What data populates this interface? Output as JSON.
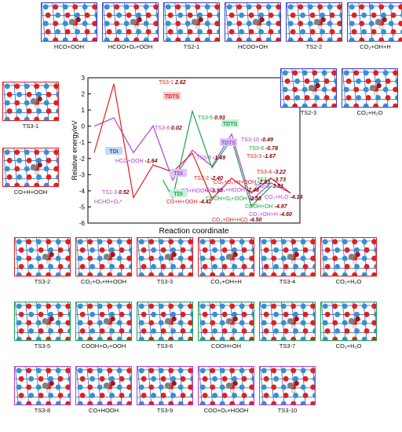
{
  "top_row": [
    {
      "label": "HCO+OOH"
    },
    {
      "label": "HCOO+Oᵥ+OOH"
    },
    {
      "label": "TS2-1"
    },
    {
      "label": "HCOO+OH"
    },
    {
      "label": "TS2-2"
    },
    {
      "label": "CO₂+OH+H"
    }
  ],
  "left_col": [
    {
      "label": "TS3-1"
    },
    {
      "label": "CO+H+OOH"
    }
  ],
  "right_inset": [
    {
      "label": "TS2-3"
    },
    {
      "label": "CO₂+H₂O"
    }
  ],
  "rows": [
    {
      "color": "red",
      "items": [
        "TS3-2",
        "CO₂+Oᵥ+H+OOH",
        "TS3-3",
        "CO₂+OH+H",
        "TS3-4",
        "CO₂+H₂O"
      ]
    },
    {
      "color": "green",
      "items": [
        "TS3-5",
        "COOH+Oᵥ+OOH",
        "TS3-6",
        "COOH+OH",
        "TS3-7",
        "CO₂+H₂O"
      ]
    },
    {
      "color": "purple",
      "items": [
        "TS3-8",
        "CO+HOOH",
        "TS3-9",
        "COO+Oᵥ+HOOH",
        "TS3-10"
      ]
    }
  ],
  "chart_data": {
    "type": "line",
    "xlabel": "Reaction coordinate",
    "ylabel": "Relative energy/eV",
    "ylim": [
      -6,
      3
    ],
    "yticks": [
      -6,
      -5,
      -4,
      -3,
      -2,
      -1,
      0,
      1,
      2,
      3
    ],
    "colors": {
      "purple": "#b040d8",
      "red": "#e02020",
      "green": "#19a24a",
      "blue": "#3050d0"
    },
    "labels": [
      {
        "text": "TS1-3",
        "value": "0.52",
        "color": "purple"
      },
      {
        "text": "HCHO+O₂*",
        "value": "",
        "color": "purple"
      },
      {
        "text": "HCO+OOH",
        "value": "-1.64",
        "color": "purple"
      },
      {
        "text": "TS3-1",
        "value": "2.62",
        "color": "red"
      },
      {
        "text": "TS3-8",
        "value": "0.02",
        "color": "purple"
      },
      {
        "text": "TS3-5",
        "value": "0.93",
        "color": "green"
      },
      {
        "text": "TS3-9",
        "value": "-1.49",
        "color": "purple"
      },
      {
        "text": "TS3-2",
        "value": "-2.40",
        "color": "red"
      },
      {
        "text": "CO+HOOH",
        "value": "-3.34",
        "color": "purple"
      },
      {
        "text": "CO+H+OOH",
        "value": "-4.42",
        "color": "red"
      },
      {
        "text": "CO₂+Oᵥ+H+OOH",
        "value": "-2.83",
        "color": "red"
      },
      {
        "text": "CO₂+Oᵥ+HOOH",
        "value": "-2.48",
        "color": "purple"
      },
      {
        "text": "COOH+Oᵥ+OOH",
        "value": "-2.58",
        "color": "green"
      },
      {
        "text": "CO₂+OH+H(2)",
        "value": "-4.50",
        "color": "red"
      },
      {
        "text": "TS3-10",
        "value": "-0.49",
        "color": "purple"
      },
      {
        "text": "TS3-6",
        "value": "-0.78",
        "color": "green"
      },
      {
        "text": "TS3-3",
        "value": "-1.67",
        "color": "red"
      },
      {
        "text": "TS3-4",
        "value": "-3.22",
        "color": "red"
      },
      {
        "text": "TS3-7",
        "value": "-3.73",
        "color": "green"
      },
      {
        "text": "TS2-3",
        "value": "-3.51",
        "color": "blue"
      },
      {
        "text": "CO₂+H₂O",
        "value": "-4.14",
        "color": "purple"
      },
      {
        "text": "COOH+OH",
        "value": "-4.97",
        "color": "green"
      },
      {
        "text": "CO₂+OH+H",
        "value": "-4.60",
        "color": "purple"
      }
    ],
    "tags": [
      {
        "text": "TDTS",
        "color": "red"
      },
      {
        "text": "TDI",
        "color": "blue"
      },
      {
        "text": "TDTS",
        "color": "green"
      },
      {
        "text": "TDTS",
        "color": "purple"
      },
      {
        "text": "TDI",
        "color": "purple"
      },
      {
        "text": "TDI",
        "color": "green"
      }
    ],
    "series": [
      {
        "color": "purple",
        "x": [
          0,
          1,
          2,
          3,
          4,
          5,
          6,
          7,
          8,
          9,
          10
        ],
        "y": [
          0,
          0.52,
          -1.64,
          0.02,
          -3.34,
          -1.49,
          -2.48,
          -0.49,
          -4.6,
          -3.51,
          -4.14
        ]
      },
      {
        "color": "red",
        "x": [
          0,
          1,
          2,
          3,
          4,
          5,
          6,
          7,
          8,
          9,
          10
        ],
        "y": [
          -1.64,
          2.62,
          -4.42,
          -2.4,
          -2.83,
          -1.67,
          -4.5,
          -3.22,
          -4.14,
          -3.22,
          -4.14
        ]
      },
      {
        "color": "green",
        "x": [
          3.5,
          4,
          5,
          6,
          7,
          8,
          9
        ],
        "y": [
          -3.34,
          -4.42,
          0.93,
          -2.58,
          -0.78,
          -4.97,
          -3.73
        ]
      }
    ]
  }
}
